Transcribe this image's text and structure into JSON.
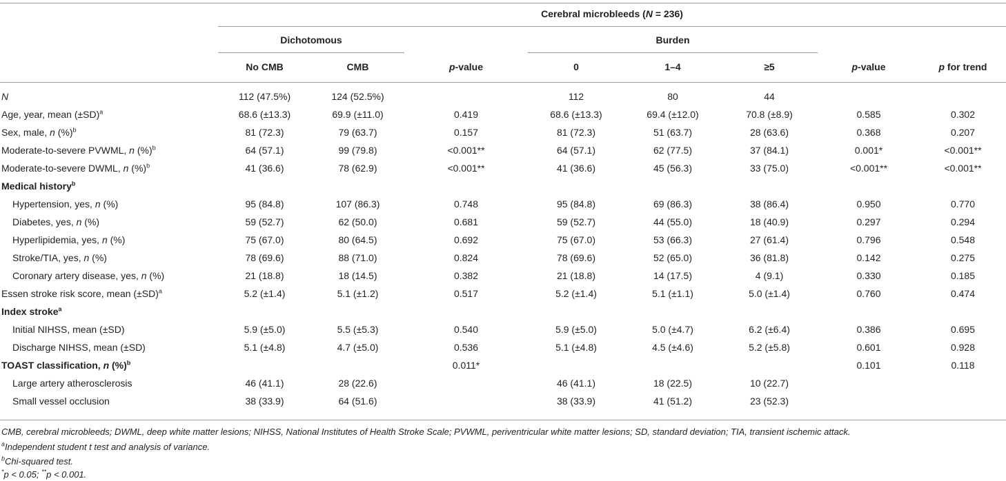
{
  "header": {
    "cmb_title_pre": "Cerebral microbleeds (",
    "cmb_title_n": "N",
    "cmb_title_post": " = 236)",
    "group_dichotomous": "Dichotomous",
    "group_burden": "Burden",
    "columns": {
      "no_cmb": "No CMB",
      "cmb": "CMB",
      "pvalue1_p": "p",
      "pvalue1_rest": "-value",
      "zero": "0",
      "one_four": "1–4",
      "ge5": "≥5",
      "pvalue2_p": "p",
      "pvalue2_rest": "-value",
      "trend_p": "p",
      "trend_rest": " for trend"
    }
  },
  "rows": [
    {
      "pre": "",
      "it": "N",
      "post": "",
      "sup": "",
      "c": [
        "112 (47.5%)",
        "124 (52.5%)",
        "",
        "112",
        "80",
        "44",
        "",
        ""
      ]
    },
    {
      "pre": "Age, year, mean (±SD)",
      "it": "",
      "post": "",
      "sup": "a",
      "c": [
        "68.6 (±13.3)",
        "69.9 (±11.0)",
        "0.419",
        "68.6 (±13.3)",
        "69.4 (±12.0)",
        "70.8 (±8.9)",
        "0.585",
        "0.302"
      ]
    },
    {
      "pre": "Sex, male, ",
      "it": "n",
      "post": " (%)",
      "sup": "b",
      "c": [
        "81 (72.3)",
        "79 (63.7)",
        "0.157",
        "81 (72.3)",
        "51 (63.7)",
        "28 (63.6)",
        "0.368",
        "0.207"
      ]
    },
    {
      "pre": "Moderate-to-severe PVWML, ",
      "it": "n",
      "post": " (%)",
      "sup": "b",
      "c": [
        "64 (57.1)",
        "99 (79.8)",
        "<0.001**",
        "64 (57.1)",
        "62 (77.5)",
        "37 (84.1)",
        "0.001*",
        "<0.001**"
      ]
    },
    {
      "pre": "Moderate-to-severe DWML, ",
      "it": "n",
      "post": " (%)",
      "sup": "b",
      "c": [
        "41 (36.6)",
        "78 (62.9)",
        "<0.001**",
        "41 (36.6)",
        "45 (56.3)",
        "33 (75.0)",
        "<0.001**",
        "<0.001**"
      ]
    },
    {
      "pre": "Medical history",
      "it": "",
      "post": "",
      "sup": "b",
      "bold": true,
      "c": [
        "",
        "",
        "",
        "",
        "",
        "",
        "",
        ""
      ]
    },
    {
      "pre": "Hypertension, yes, ",
      "it": "n",
      "post": " (%)",
      "sup": "",
      "indent": true,
      "c": [
        "95 (84.8)",
        "107 (86.3)",
        "0.748",
        "95 (84.8)",
        "69 (86.3)",
        "38 (86.4)",
        "0.950",
        "0.770"
      ]
    },
    {
      "pre": "Diabetes, yes, ",
      "it": "n",
      "post": " (%)",
      "sup": "",
      "indent": true,
      "c": [
        "59 (52.7)",
        "62 (50.0)",
        "0.681",
        "59 (52.7)",
        "44 (55.0)",
        "18 (40.9)",
        "0.297",
        "0.294"
      ]
    },
    {
      "pre": "Hyperlipidemia, yes, ",
      "it": "n",
      "post": " (%)",
      "sup": "",
      "indent": true,
      "c": [
        "75 (67.0)",
        "80 (64.5)",
        "0.692",
        "75 (67.0)",
        "53 (66.3)",
        "27 (61.4)",
        "0.796",
        "0.548"
      ]
    },
    {
      "pre": "Stroke/TIA, yes, ",
      "it": "n",
      "post": " (%)",
      "sup": "",
      "indent": true,
      "c": [
        "78 (69.6)",
        "88 (71.0)",
        "0.824",
        "78 (69.6)",
        "52 (65.0)",
        "36 (81.8)",
        "0.142",
        "0.275"
      ]
    },
    {
      "pre": "Coronary artery disease, yes, ",
      "it": "n",
      "post": " (%)",
      "sup": "",
      "indent": true,
      "c": [
        "21 (18.8)",
        "18 (14.5)",
        "0.382",
        "21 (18.8)",
        "14 (17.5)",
        "4 (9.1)",
        "0.330",
        "0.185"
      ]
    },
    {
      "pre": "Essen stroke risk score, mean (±SD)",
      "it": "",
      "post": "",
      "sup": "a",
      "c": [
        "5.2 (±1.4)",
        "5.1 (±1.2)",
        "0.517",
        "5.2 (±1.4)",
        "5.1 (±1.1)",
        "5.0 (±1.4)",
        "0.760",
        "0.474"
      ]
    },
    {
      "pre": "Index stroke",
      "it": "",
      "post": "",
      "sup": "a",
      "bold": true,
      "c": [
        "",
        "",
        "",
        "",
        "",
        "",
        "",
        ""
      ]
    },
    {
      "pre": "Initial NIHSS, mean (±SD)",
      "it": "",
      "post": "",
      "sup": "",
      "indent": true,
      "c": [
        "5.9 (±5.0)",
        "5.5 (±5.3)",
        "0.540",
        "5.9 (±5.0)",
        "5.0 (±4.7)",
        "6.2 (±6.4)",
        "0.386",
        "0.695"
      ]
    },
    {
      "pre": "Discharge NIHSS, mean (±SD)",
      "it": "",
      "post": "",
      "sup": "",
      "indent": true,
      "c": [
        "5.1 (±4.8)",
        "4.7 (±5.0)",
        "0.536",
        "5.1 (±4.8)",
        "4.5 (±4.6)",
        "5.2 (±5.8)",
        "0.601",
        "0.928"
      ]
    },
    {
      "pre": "TOAST classification, ",
      "it": "n",
      "post": " (%)",
      "sup": "b",
      "bold": true,
      "c": [
        "",
        "",
        "0.011*",
        "",
        "",
        "",
        "0.101",
        "0.118"
      ]
    },
    {
      "pre": "Large artery atherosclerosis",
      "it": "",
      "post": "",
      "sup": "",
      "indent": true,
      "c": [
        "46 (41.1)",
        "28 (22.6)",
        "",
        "46 (41.1)",
        "18 (22.5)",
        "10 (22.7)",
        "",
        ""
      ]
    },
    {
      "pre": "Small vessel occlusion",
      "it": "",
      "post": "",
      "sup": "",
      "indent": true,
      "c": [
        "38 (33.9)",
        "64 (51.6)",
        "",
        "38 (33.9)",
        "41 (51.2)",
        "23 (52.3)",
        "",
        ""
      ]
    }
  ],
  "footnotes": {
    "abbrev": "CMB, cerebral microbleeds; DWML, deep white matter lesions; NIHSS, National Institutes of Health Stroke Scale; PVWML, periventricular white matter lesions; SD, standard deviation; TIA, transient ischemic attack.",
    "a_mark": "a",
    "a_text": "Independent student t test and analysis of variance.",
    "b_mark": "b",
    "b_text": "Chi-squared test.",
    "sig_mark1": "*",
    "sig_text1": "p < 0.05; ",
    "sig_mark2": "**",
    "sig_text2": "p < 0.001."
  }
}
